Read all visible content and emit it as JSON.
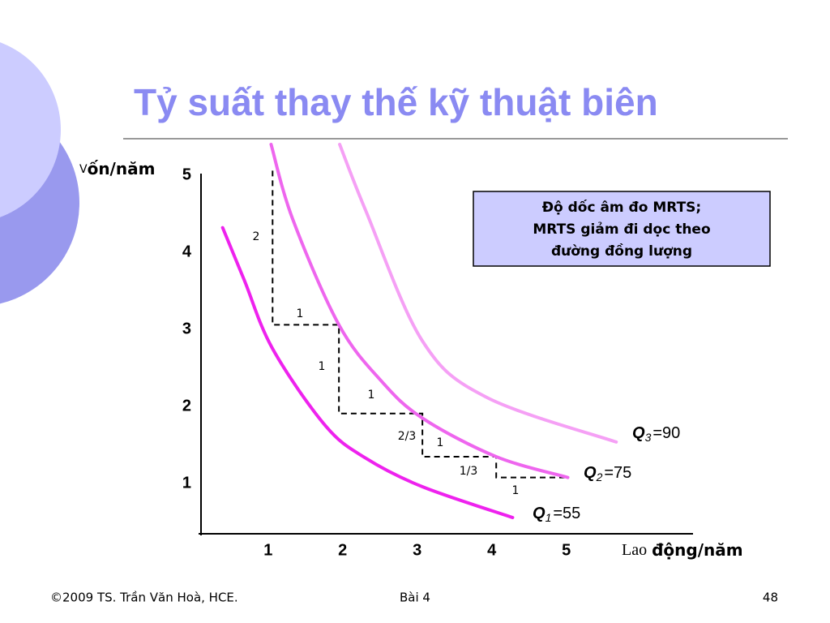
{
  "chart_data": {
    "type": "line",
    "title": "Tỷ suất thay thế kỹ thuật biên",
    "y_label_initial": "V",
    "y_label": "ốn/năm",
    "x_label_serif": "Lao",
    "x_label": "động/năm",
    "xlim": [
      0.1,
      6.7
    ],
    "ylim": [
      0.35,
      5.4
    ],
    "xticks": [
      1,
      2,
      3,
      4,
      5
    ],
    "yticks": [
      1,
      2,
      3,
      4,
      5
    ],
    "grid": false,
    "series": [
      {
        "name": "Q",
        "sub": "1",
        "suffix": "=55",
        "color": "#ee22ee",
        "x": [
          0.39,
          0.68,
          1.06,
          1.77,
          2.31,
          3.07,
          4.28
        ],
        "values": [
          4.32,
          3.64,
          2.75,
          1.75,
          1.33,
          0.96,
          0.56
        ]
      },
      {
        "name": "Q",
        "sub": "2",
        "suffix": "=75",
        "color": "#ee66ee",
        "x": [
          1.04,
          1.33,
          1.95,
          2.52,
          3.07,
          4.06,
          5.02
        ],
        "values": [
          5.4,
          4.43,
          3.06,
          2.33,
          1.85,
          1.35,
          1.08
        ]
      },
      {
        "name": "Q",
        "sub": "3",
        "suffix": "=90",
        "color": "#f5a0f5",
        "x": [
          1.96,
          2.31,
          3.07,
          3.93,
          5.67
        ],
        "values": [
          5.4,
          4.54,
          2.85,
          2.12,
          1.54
        ]
      }
    ],
    "steps": {
      "x": [
        1.06,
        1.06,
        1.95,
        1.95,
        3.07,
        3.07,
        4.06,
        4.06,
        5.02
      ],
      "values": [
        5.06,
        3.06,
        3.06,
        1.91,
        1.91,
        1.35,
        1.35,
        1.08,
        1.08
      ]
    },
    "step_labels": [
      "2",
      "1",
      "1",
      "1",
      "2/3",
      "1",
      "1/3",
      "1"
    ],
    "note": [
      "Độ dốc âm đo MRTS;",
      "MRTS giảm đi dọc theo",
      "đường đồng lượng"
    ]
  },
  "footer": {
    "copyright": "©2009 TS. Trần Văn Hoà, HCE.",
    "lesson": "Bài 4",
    "page": "48"
  }
}
